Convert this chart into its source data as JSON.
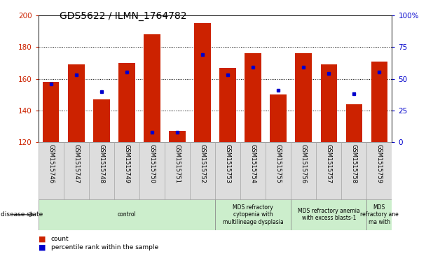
{
  "title": "GDS5622 / ILMN_1764782",
  "samples": [
    "GSM1515746",
    "GSM1515747",
    "GSM1515748",
    "GSM1515749",
    "GSM1515750",
    "GSM1515751",
    "GSM1515752",
    "GSM1515753",
    "GSM1515754",
    "GSM1515755",
    "GSM1515756",
    "GSM1515757",
    "GSM1515758",
    "GSM1515759"
  ],
  "counts": [
    158,
    169,
    147,
    170,
    188,
    127,
    195,
    167,
    176,
    150,
    176,
    169,
    144,
    171
  ],
  "baseline": 120,
  "percentile_ranks": [
    46,
    53,
    40,
    55,
    8,
    8,
    69,
    53,
    59,
    41,
    59,
    54,
    38,
    55
  ],
  "ylim_left": [
    120,
    200
  ],
  "ylim_right": [
    0,
    100
  ],
  "yticks_left": [
    120,
    140,
    160,
    180,
    200
  ],
  "yticks_right": [
    0,
    25,
    50,
    75,
    100
  ],
  "bar_color": "#cc2200",
  "marker_color": "#0000cc",
  "title_fontsize": 10,
  "group_defs": [
    {
      "start": 0,
      "end": 6,
      "label": "control",
      "color": "#cceecc"
    },
    {
      "start": 7,
      "end": 9,
      "label": "MDS refractory\ncytopenia with\nmultilineage dysplasia",
      "color": "#cceecc"
    },
    {
      "start": 10,
      "end": 12,
      "label": "MDS refractory anemia\nwith excess blasts-1",
      "color": "#cceecc"
    },
    {
      "start": 13,
      "end": 13,
      "label": "MDS\nrefractory ane\nma with",
      "color": "#cceecc"
    }
  ]
}
